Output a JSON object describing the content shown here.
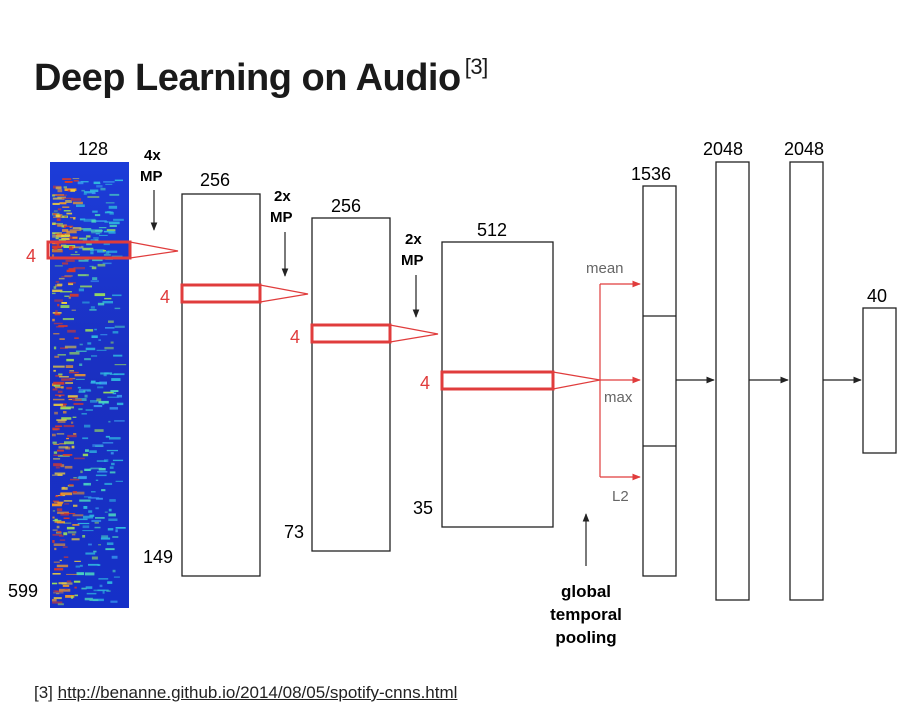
{
  "title": "Deep Learning on Audio",
  "title_ref": "[3]",
  "footer": {
    "ref": "[3]",
    "url": "http://benanne.github.io/2014/08/05/spotify-cnns.html"
  },
  "colors": {
    "highlight": "#e03c3c",
    "box_stroke": "#222222",
    "spectrogram_bg": "#1530c8"
  },
  "input": {
    "width_label": "128",
    "height_label": "599",
    "window_label": "4"
  },
  "layers": [
    {
      "width_label": "256",
      "height_label": "149",
      "window_label": "4",
      "pool_label": [
        "4x",
        "MP"
      ]
    },
    {
      "width_label": "256",
      "height_label": "73",
      "window_label": "4",
      "pool_label": [
        "2x",
        "MP"
      ]
    },
    {
      "width_label": "512",
      "height_label": "35",
      "window_label": "4",
      "pool_label": [
        "2x",
        "MP"
      ]
    }
  ],
  "pooling": {
    "labels": [
      "mean",
      "max",
      "L2"
    ],
    "caption": [
      "global",
      "temporal",
      "pooling"
    ]
  },
  "dense": {
    "labels": [
      "1536",
      "2048",
      "2048",
      "40"
    ]
  }
}
